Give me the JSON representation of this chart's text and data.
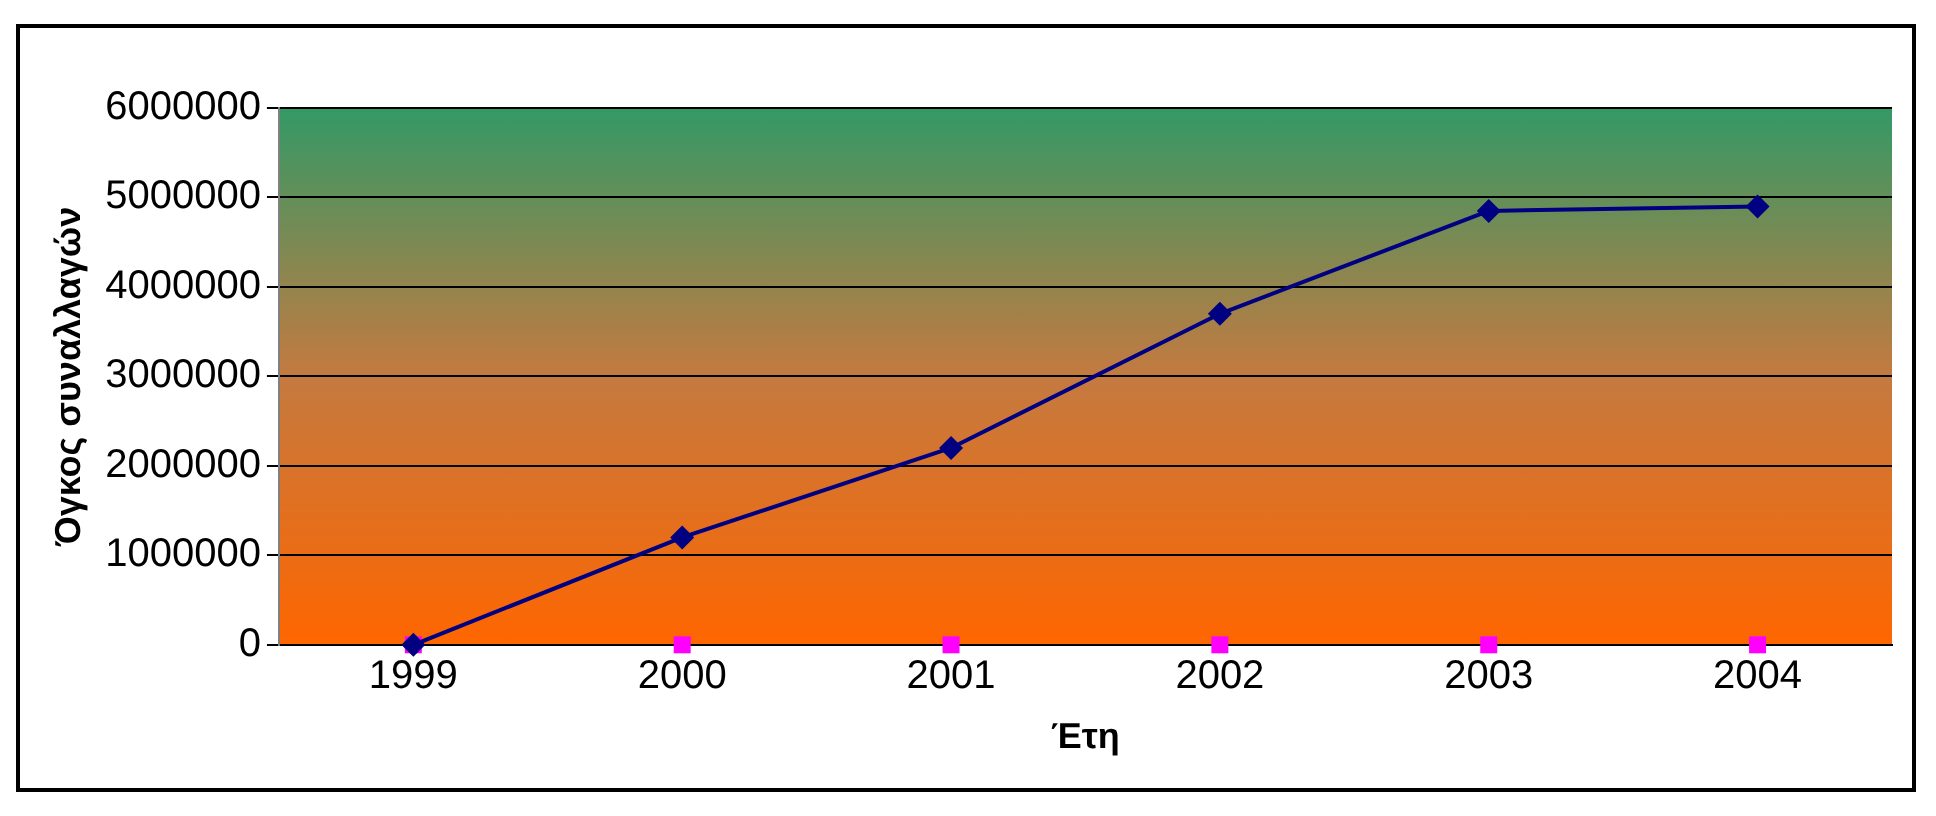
{
  "chart_data": {
    "type": "line",
    "xlabel": "Έτη",
    "ylabel": "Όγκος συναλλαγών",
    "categories": [
      "1999",
      "2000",
      "2001",
      "2002",
      "2003",
      "2004"
    ],
    "series": [
      {
        "color": "#000080",
        "values": [
          0,
          1200000,
          2200000,
          3700000,
          4850000,
          4900000
        ],
        "marker": "diamond"
      },
      {
        "type": "scatter",
        "color": "#ff00ff",
        "values": [
          0,
          0,
          0,
          0,
          0,
          0
        ],
        "marker": "square"
      }
    ],
    "ylim": [
      0,
      6000000
    ],
    "yticks": [
      0,
      1000000,
      2000000,
      3000000,
      4000000,
      5000000,
      6000000
    ],
    "grid": "y",
    "legend": false
  }
}
